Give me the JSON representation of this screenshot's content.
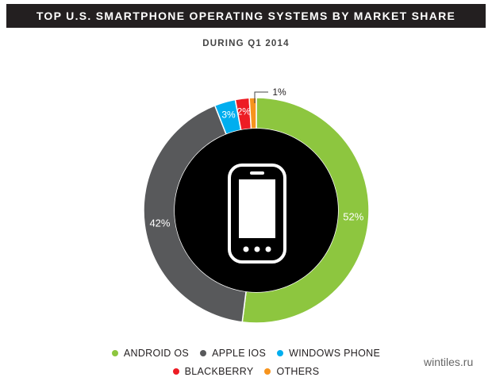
{
  "title": "TOP U.S. SMARTPHONE OPERATING SYSTEMS BY MARKET SHARE",
  "subtitle": "DURING Q1 2014",
  "watermark": "wintiles.ru",
  "chart_data": {
    "type": "pie",
    "style": "donut",
    "categories": [
      "ANDROID OS",
      "APPLE IOS",
      "WINDOWS PHONE",
      "BLACKBERRY",
      "OTHERS"
    ],
    "values": [
      52,
      42,
      3,
      2,
      1
    ],
    "labels": [
      "52%",
      "42%",
      "3%",
      "2%",
      "1%"
    ],
    "colors": [
      "#8dc63f",
      "#58595b",
      "#00aeef",
      "#ed1c24",
      "#f7941d"
    ],
    "center_icon": "smartphone-icon",
    "legend_position": "bottom"
  },
  "legend": [
    {
      "label": "ANDROID OS",
      "color": "#8dc63f"
    },
    {
      "label": "APPLE IOS",
      "color": "#58595b"
    },
    {
      "label": "WINDOWS PHONE",
      "color": "#00aeef"
    },
    {
      "label": "BLACKBERRY",
      "color": "#ed1c24"
    },
    {
      "label": "OTHERS",
      "color": "#f7941d"
    }
  ]
}
